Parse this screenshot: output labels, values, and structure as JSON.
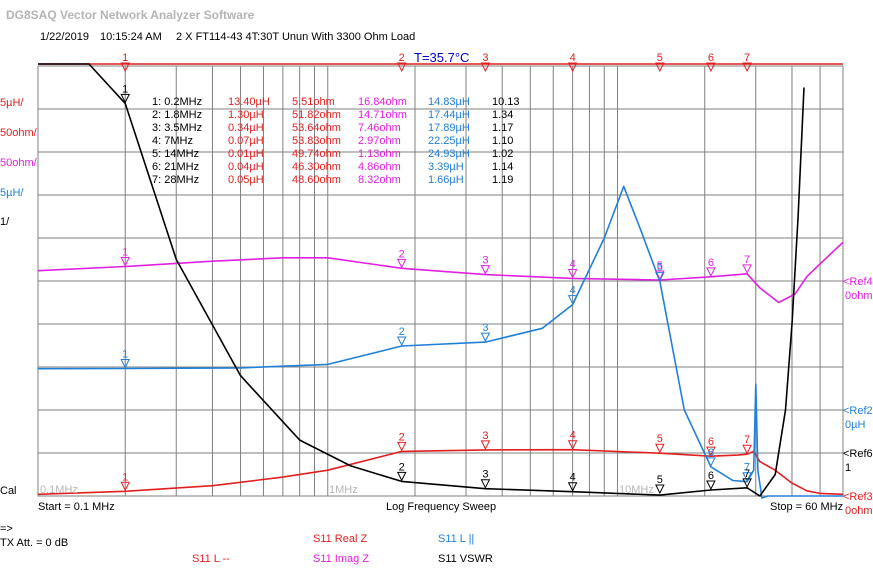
{
  "app_title": "DG8SAQ Vector Network Analyzer Software",
  "header": {
    "date": "1/22/2019",
    "time": "10:15:24 AM",
    "description": "2 X FT114-43 4T:30T Unun With 3300 Ohm Load",
    "temperature": "T=35.7°C"
  },
  "colors": {
    "real": "#e02020",
    "imag": "#e020e0",
    "inductance": "#2080d8",
    "vswr": "#000000",
    "grid": "#808080",
    "temp": "#0000cc"
  },
  "left_scales": {
    "l_scale": "5µH/",
    "real_scale": "50ohm/",
    "imag_scale": "50ohm/",
    "ll_scale": "5µH/",
    "vswr_scale": "1/",
    "cal": "Cal"
  },
  "right_refs": {
    "ref4": "<Ref4",
    "ref4_val": "0ohm",
    "ref2": "<Ref2",
    "ref2_val": "0µH",
    "ref6": "<Ref6",
    "ref6_val": "1",
    "ref3": "<Ref3",
    "ref3_val": "0ohm"
  },
  "axis_labels": {
    "f1": "0.1MHz",
    "f2": "1MHz",
    "f3": "10MHz"
  },
  "footer": {
    "start": "Start = 0.1 MHz",
    "sweep": "Log Frequency Sweep",
    "stop": "Stop = 60 MHz",
    "arrow": "=>",
    "tx_att": "TX Att. = 0 dB"
  },
  "legend": {
    "real": "S11  Real Z",
    "ll": "S11  L ||",
    "l": "S11  L --",
    "imag": "S11  Imag Z",
    "vswr": "S11  VSWR"
  },
  "markers": [
    {
      "label": "1: 0.2MHz",
      "l": "13.40µH",
      "real": "5.51ohm",
      "imag": "16.84ohm",
      "ll": "14.83µH",
      "vswr": "10.13"
    },
    {
      "label": "2: 1.8MHz",
      "l": "1.30µH",
      "real": "51.82ohm",
      "imag": "14.71ohm",
      "ll": "17.44µH",
      "vswr": "1.34"
    },
    {
      "label": "3: 3.5MHz",
      "l": "0.34µH",
      "real": "53.64ohm",
      "imag": "7.46ohm",
      "ll": "17.89µH",
      "vswr": "1.17"
    },
    {
      "label": "4: 7MHz",
      "l": "0.07µH",
      "real": "53.83ohm",
      "imag": "2.97ohm",
      "ll": "22.25µH",
      "vswr": "1.10"
    },
    {
      "label": "5: 14MHz",
      "l": "0.01µH",
      "real": "49.74ohm",
      "imag": "1.13ohm",
      "ll": "24.93µH",
      "vswr": "1.02"
    },
    {
      "label": "6: 21MHz",
      "l": "0.04µH",
      "real": "46.30ohm",
      "imag": "4.86ohm",
      "ll": "3.39µH",
      "vswr": "1.14"
    },
    {
      "label": "7: 28MHz",
      "l": "0.05µH",
      "real": "48.60ohm",
      "imag": "8.32ohm",
      "ll": "1.66µH",
      "vswr": "1.19"
    }
  ],
  "chart_data": {
    "type": "line",
    "xscale": "log",
    "xlim": [
      0.1,
      60
    ],
    "x_tick_labels": [
      "0.1MHz",
      "1MHz",
      "10MHz"
    ],
    "marker_freqs": [
      0.2,
      1.8,
      3.5,
      7,
      14,
      21,
      28
    ],
    "marker_numbers": [
      "1",
      "2",
      "3",
      "4",
      "5",
      "6",
      "7"
    ],
    "series": [
      {
        "name": "S11  Real Z",
        "key": "real",
        "color": "#e02020",
        "ref": 0,
        "per_div": 50,
        "x": [
          0.1,
          0.2,
          0.4,
          0.7,
          1.0,
          1.8,
          3.5,
          7,
          14,
          21,
          26,
          28,
          29.5,
          31,
          35,
          40,
          45,
          50,
          60
        ],
        "y": [
          2,
          5.51,
          12,
          22,
          30,
          51.82,
          53.64,
          53.83,
          49.74,
          46.3,
          47.5,
          48.6,
          52,
          40,
          30,
          15,
          6,
          3,
          2
        ]
      },
      {
        "name": "S11  Imag Z",
        "key": "imag",
        "color": "#e020e0",
        "ref": -250,
        "per_div": 50,
        "x": [
          0.1,
          0.2,
          0.4,
          0.7,
          1.0,
          1.8,
          3.5,
          7,
          14,
          21,
          28,
          31,
          36,
          41,
          45,
          50,
          60
        ],
        "y": [
          12,
          16.84,
          23,
          27,
          27,
          14.71,
          7.46,
          2.97,
          1.13,
          4.86,
          8.32,
          -8,
          -25,
          -15,
          5,
          20,
          45
        ]
      },
      {
        "name": "S11  L ||",
        "key": "ll",
        "color": "#2080d8",
        "ref": 0,
        "per_div": 5,
        "x": [
          0.1,
          0.2,
          0.5,
          1.0,
          1.8,
          3.5,
          5.5,
          7,
          9,
          10.5,
          12,
          14,
          17,
          21,
          25,
          28,
          29.5,
          30,
          30.5,
          31.5,
          33,
          40,
          60
        ],
        "y": [
          14.8,
          14.83,
          14.9,
          15.3,
          17.44,
          17.89,
          19.5,
          22.25,
          30,
          36,
          31,
          24.93,
          10,
          3.39,
          1.8,
          1.66,
          3,
          13,
          3,
          -1,
          0,
          0,
          0
        ]
      },
      {
        "name": "S11  L --",
        "key": "l",
        "color": "#e02020",
        "ref": -65,
        "per_div": 5,
        "x": [
          0.1,
          0.2,
          0.3,
          0.5,
          0.8,
          1.0,
          1.8,
          3.5,
          7,
          14,
          21,
          28,
          32,
          35,
          40,
          45,
          60
        ],
        "y": [
          14.3,
          13.4,
          12.5,
          11.6,
          10,
          8,
          1.3,
          0.34,
          0.07,
          0.01,
          0.04,
          0.05,
          0,
          0,
          0,
          0,
          0
        ]
      },
      {
        "name": "S11  VSWR",
        "key": "vswr",
        "color": "#000000",
        "ref": 1,
        "per_div": 1,
        "x": [
          0.1,
          0.15,
          0.2,
          0.3,
          0.5,
          0.8,
          1.2,
          1.8,
          3.5,
          7,
          14,
          21,
          28,
          31,
          35,
          38,
          40,
          42,
          44
        ],
        "y": [
          18,
          13.5,
          10.13,
          6.5,
          3.8,
          2.3,
          1.7,
          1.34,
          1.17,
          1.1,
          1.02,
          1.14,
          1.19,
          1.0,
          1.5,
          3.0,
          5,
          7.5,
          10.5
        ]
      }
    ]
  }
}
